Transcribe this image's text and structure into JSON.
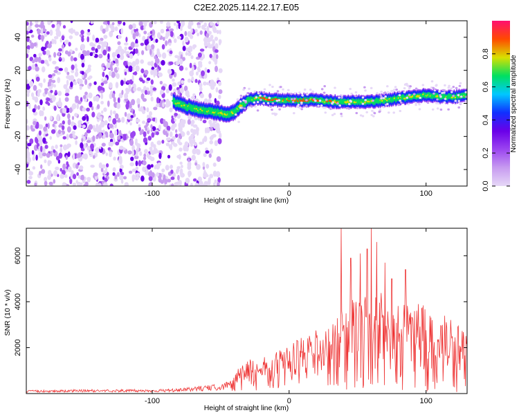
{
  "title": "C2E2.2025.114.22.17.E05",
  "colors": {
    "snr_line": "#ee3333",
    "colormap": [
      "#e6d8f7",
      "#c79bf0",
      "#9b45f0",
      "#6a00e8",
      "#1030ff",
      "#00c8ff",
      "#00e060",
      "#d8e000",
      "#ff4a00",
      "#ff1070"
    ]
  },
  "chart_data": [
    {
      "type": "heatmap",
      "title": "C2E2.2025.114.22.17.E05",
      "xlabel": "Height of straight line (km)",
      "ylabel": "Frequency (Hz)",
      "xlim": [
        -192,
        130
      ],
      "ylim": [
        -50,
        50
      ],
      "xticks": [
        -100,
        0,
        100
      ],
      "yticks": [
        -40,
        -20,
        0,
        20,
        40
      ],
      "colorbar": {
        "label": "Normalized spectral amplitude",
        "range": [
          0.0,
          1.0
        ],
        "ticks": [
          0.0,
          0.2,
          0.4,
          0.6,
          0.8
        ]
      },
      "noise_region_x": [
        -192,
        -50
      ],
      "ridge": {
        "x": [
          -85,
          -75,
          -65,
          -55,
          -45,
          -40,
          -35,
          -30,
          -25,
          -20,
          -10,
          0,
          10,
          20,
          30,
          40,
          50,
          60,
          70,
          80,
          90,
          100,
          110,
          120,
          130
        ],
        "y": [
          1,
          -2,
          -4,
          -5,
          -7,
          -5,
          -1,
          2,
          3,
          3,
          2,
          2,
          2,
          2,
          1,
          1,
          1,
          1,
          2,
          3,
          4,
          5,
          4,
          4,
          5
        ]
      }
    },
    {
      "type": "line",
      "xlabel": "Height of straight line (km)",
      "ylabel": "SNR (10 * v/v)",
      "xlim": [
        -192,
        130
      ],
      "ylim": [
        0,
        7200
      ],
      "xticks": [
        -100,
        0,
        100
      ],
      "yticks": [
        2000,
        4000,
        6000
      ],
      "grid": false,
      "series": [
        {
          "envelope_x": [
            -192,
            -150,
            -100,
            -80,
            -70,
            -60,
            -50,
            -45,
            -40,
            -35,
            -30,
            -20,
            -10,
            0,
            10,
            20,
            30,
            35,
            40,
            45,
            50,
            55,
            60,
            65,
            70,
            80,
            90,
            100,
            110,
            120,
            130
          ],
          "envelope_y": [
            120,
            150,
            150,
            180,
            250,
            300,
            350,
            500,
            800,
            1100,
            1300,
            1300,
            1500,
            1800,
            2100,
            2300,
            2600,
            2800,
            3100,
            3400,
            3500,
            3600,
            3700,
            3700,
            3600,
            3500,
            3300,
            3200,
            3000,
            2600,
            2200
          ],
          "peaks_x": [
            38,
            60,
            57,
            45,
            52,
            70,
            85,
            64,
            75
          ],
          "peaks_y": [
            7200,
            7200,
            6300,
            5900,
            6100,
            5700,
            5400,
            6600,
            5000
          ]
        }
      ]
    }
  ]
}
